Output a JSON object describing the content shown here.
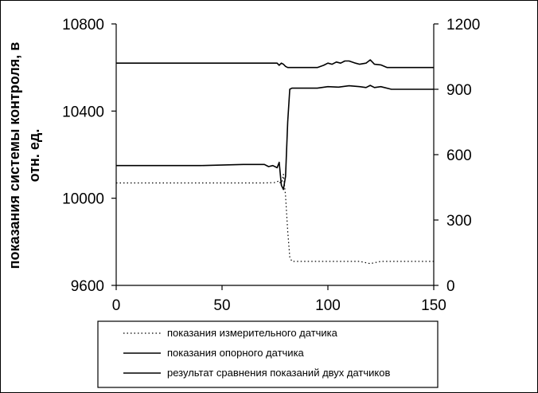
{
  "chart_data": {
    "type": "line",
    "ylabel": [
      "показания системы контроля, в",
      "отн. ед."
    ],
    "xlim": [
      0,
      150
    ],
    "ylim": [
      9600,
      10800
    ],
    "y2lim": [
      0,
      1200
    ],
    "x_ticks": [
      "0",
      "50",
      "100",
      "150"
    ],
    "y_ticks": [
      "9600",
      "10000",
      "10400",
      "10800"
    ],
    "y2_ticks": [
      "0",
      "300",
      "600",
      "900",
      "1200"
    ],
    "grid": false,
    "legend_position": "bottom",
    "series": [
      {
        "name": "показания измерительного датчика",
        "axis": "left",
        "style": "dotted",
        "x": [
          0,
          70,
          75,
          77,
          78,
          79,
          80,
          81,
          82,
          83,
          115,
          120,
          125,
          150
        ],
        "y": [
          10070,
          10070,
          10072,
          10080,
          10060,
          10110,
          10010,
          9850,
          9730,
          9710,
          9710,
          9700,
          9710,
          9710
        ]
      },
      {
        "name": "показания опорного датчика",
        "axis": "left",
        "style": "solid",
        "x": [
          0,
          76,
          77,
          78,
          79,
          80,
          81,
          82,
          83,
          84,
          85,
          90,
          95,
          98,
          100,
          102,
          104,
          106,
          108,
          110,
          113,
          115,
          118,
          120,
          122,
          125,
          128,
          130,
          150
        ],
        "y": [
          10620,
          10620,
          10610,
          10620,
          10615,
          10605,
          10600,
          10600,
          10600,
          10600,
          10600,
          10600,
          10600,
          10610,
          10620,
          10615,
          10625,
          10620,
          10630,
          10630,
          10620,
          10615,
          10620,
          10635,
          10615,
          10612,
          10600,
          10600,
          10600
        ]
      },
      {
        "name": "результат сравнения показаний двух датчиков",
        "axis": "right",
        "style": "solid",
        "x": [
          0,
          40,
          60,
          70,
          72,
          74,
          76,
          77,
          78,
          79,
          80,
          81,
          82,
          83,
          84,
          90,
          95,
          100,
          105,
          110,
          115,
          118,
          120,
          122,
          125,
          130,
          150
        ],
        "y": [
          550,
          550,
          555,
          555,
          545,
          550,
          540,
          565,
          460,
          440,
          500,
          750,
          900,
          905,
          905,
          905,
          905,
          912,
          910,
          916,
          912,
          908,
          918,
          908,
          912,
          900,
          900
        ]
      }
    ]
  }
}
